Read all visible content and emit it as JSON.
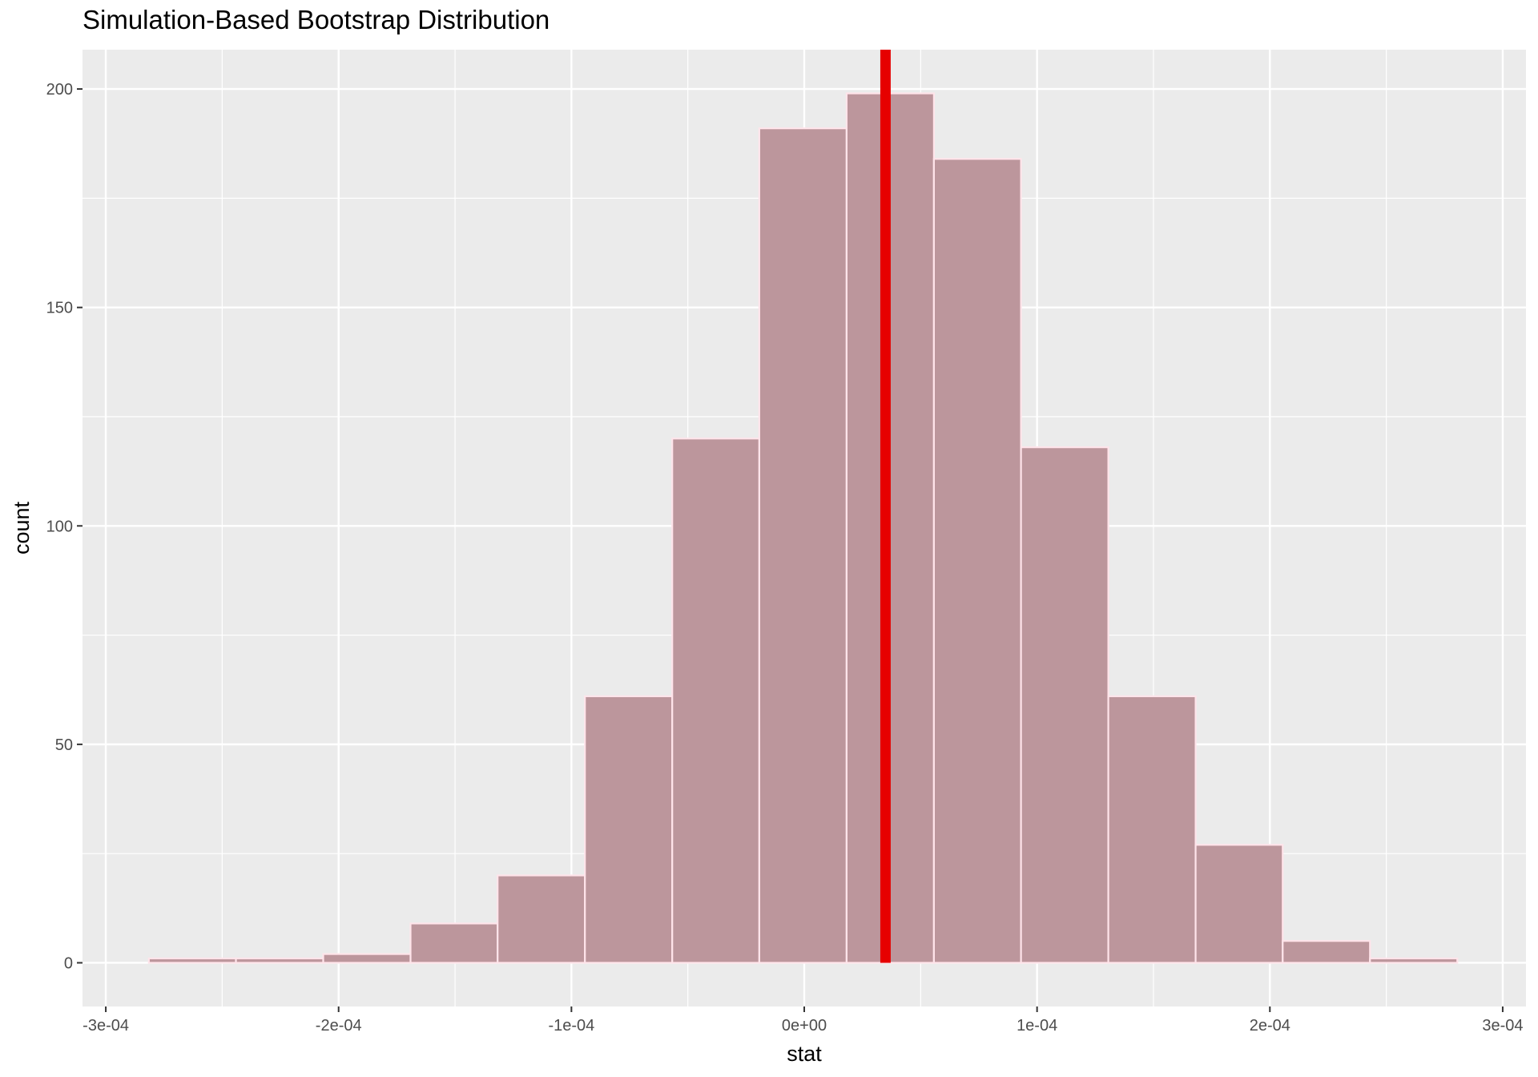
{
  "chart_data": {
    "type": "bar",
    "title": "Simulation-Based Bootstrap Distribution",
    "xlabel": "stat",
    "ylabel": "count",
    "xlim": [
      -0.00031,
      0.00031
    ],
    "ylim": [
      -10,
      209
    ],
    "x_ticks": [
      {
        "value": -0.0003,
        "label": "-3e-04"
      },
      {
        "value": -0.0002,
        "label": "-2e-04"
      },
      {
        "value": -0.0001,
        "label": "-1e-04"
      },
      {
        "value": 0,
        "label": "0e+00"
      },
      {
        "value": 0.0001,
        "label": "1e-04"
      },
      {
        "value": 0.0002,
        "label": "2e-04"
      },
      {
        "value": 0.0003,
        "label": "3e-04"
      }
    ],
    "y_ticks": [
      {
        "value": 0,
        "label": "0"
      },
      {
        "value": 50,
        "label": "50"
      },
      {
        "value": 100,
        "label": "100"
      },
      {
        "value": 150,
        "label": "150"
      },
      {
        "value": 200,
        "label": "200"
      }
    ],
    "bins": [
      {
        "x0": -0.0002815,
        "x1": -0.0002441,
        "count": 1
      },
      {
        "x0": -0.0002441,
        "x1": -0.0002066,
        "count": 1
      },
      {
        "x0": -0.0002066,
        "x1": -0.0001691,
        "count": 2
      },
      {
        "x0": -0.0001691,
        "x1": -0.0001317,
        "count": 9
      },
      {
        "x0": -0.0001317,
        "x1": -9.42e-05,
        "count": 20
      },
      {
        "x0": -9.42e-05,
        "x1": -5.67e-05,
        "count": 61
      },
      {
        "x0": -5.67e-05,
        "x1": -1.93e-05,
        "count": 120
      },
      {
        "x0": -1.93e-05,
        "x1": 1.82e-05,
        "count": 191
      },
      {
        "x0": 1.82e-05,
        "x1": 5.57e-05,
        "count": 199
      },
      {
        "x0": 5.57e-05,
        "x1": 9.31e-05,
        "count": 184
      },
      {
        "x0": 9.31e-05,
        "x1": 0.0001306,
        "count": 118
      },
      {
        "x0": 0.0001306,
        "x1": 0.0001681,
        "count": 61
      },
      {
        "x0": 0.0001681,
        "x1": 0.0002055,
        "count": 27
      },
      {
        "x0": 0.0002055,
        "x1": 0.000243,
        "count": 5
      },
      {
        "x0": 0.000243,
        "x1": 0.0002805,
        "count": 1
      }
    ],
    "reference_line": {
      "x": 3.49e-05,
      "color": "#e60000"
    },
    "colors": {
      "panel_background": "#ebebeb",
      "grid": "#ffffff",
      "bar_fill": "#bc969c",
      "bar_outline": "#ffe4ea"
    },
    "grid": true,
    "legend": "none"
  }
}
